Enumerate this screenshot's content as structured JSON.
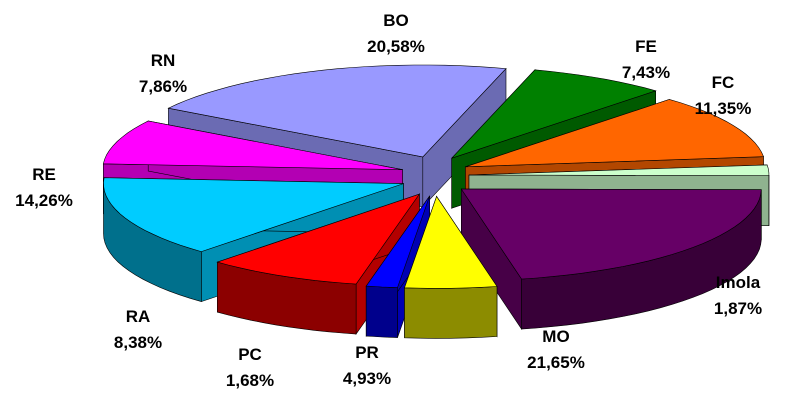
{
  "chart_data": {
    "type": "pie",
    "style": "3d-exploded",
    "title": "",
    "categories": [
      "BO",
      "FE",
      "FC",
      "Imola",
      "MO",
      "PR",
      "PC",
      "RA",
      "RE",
      "RN"
    ],
    "values": [
      20.58,
      7.43,
      11.35,
      1.87,
      21.65,
      4.93,
      1.68,
      8.38,
      14.26,
      7.86
    ],
    "value_labels": [
      "20,58%",
      "7,43%",
      "11,35%",
      "1,87%",
      "21,65%",
      "4,93%",
      "1,68%",
      "8,38%",
      "14,26%",
      "7,86%"
    ],
    "colors": [
      "#9999ff",
      "#008000",
      "#ff6600",
      "#ccffcc",
      "#660066",
      "#ffff00",
      "#0000ff",
      "#ff0000",
      "#00ccff",
      "#ff00ff"
    ],
    "legend": "none"
  }
}
